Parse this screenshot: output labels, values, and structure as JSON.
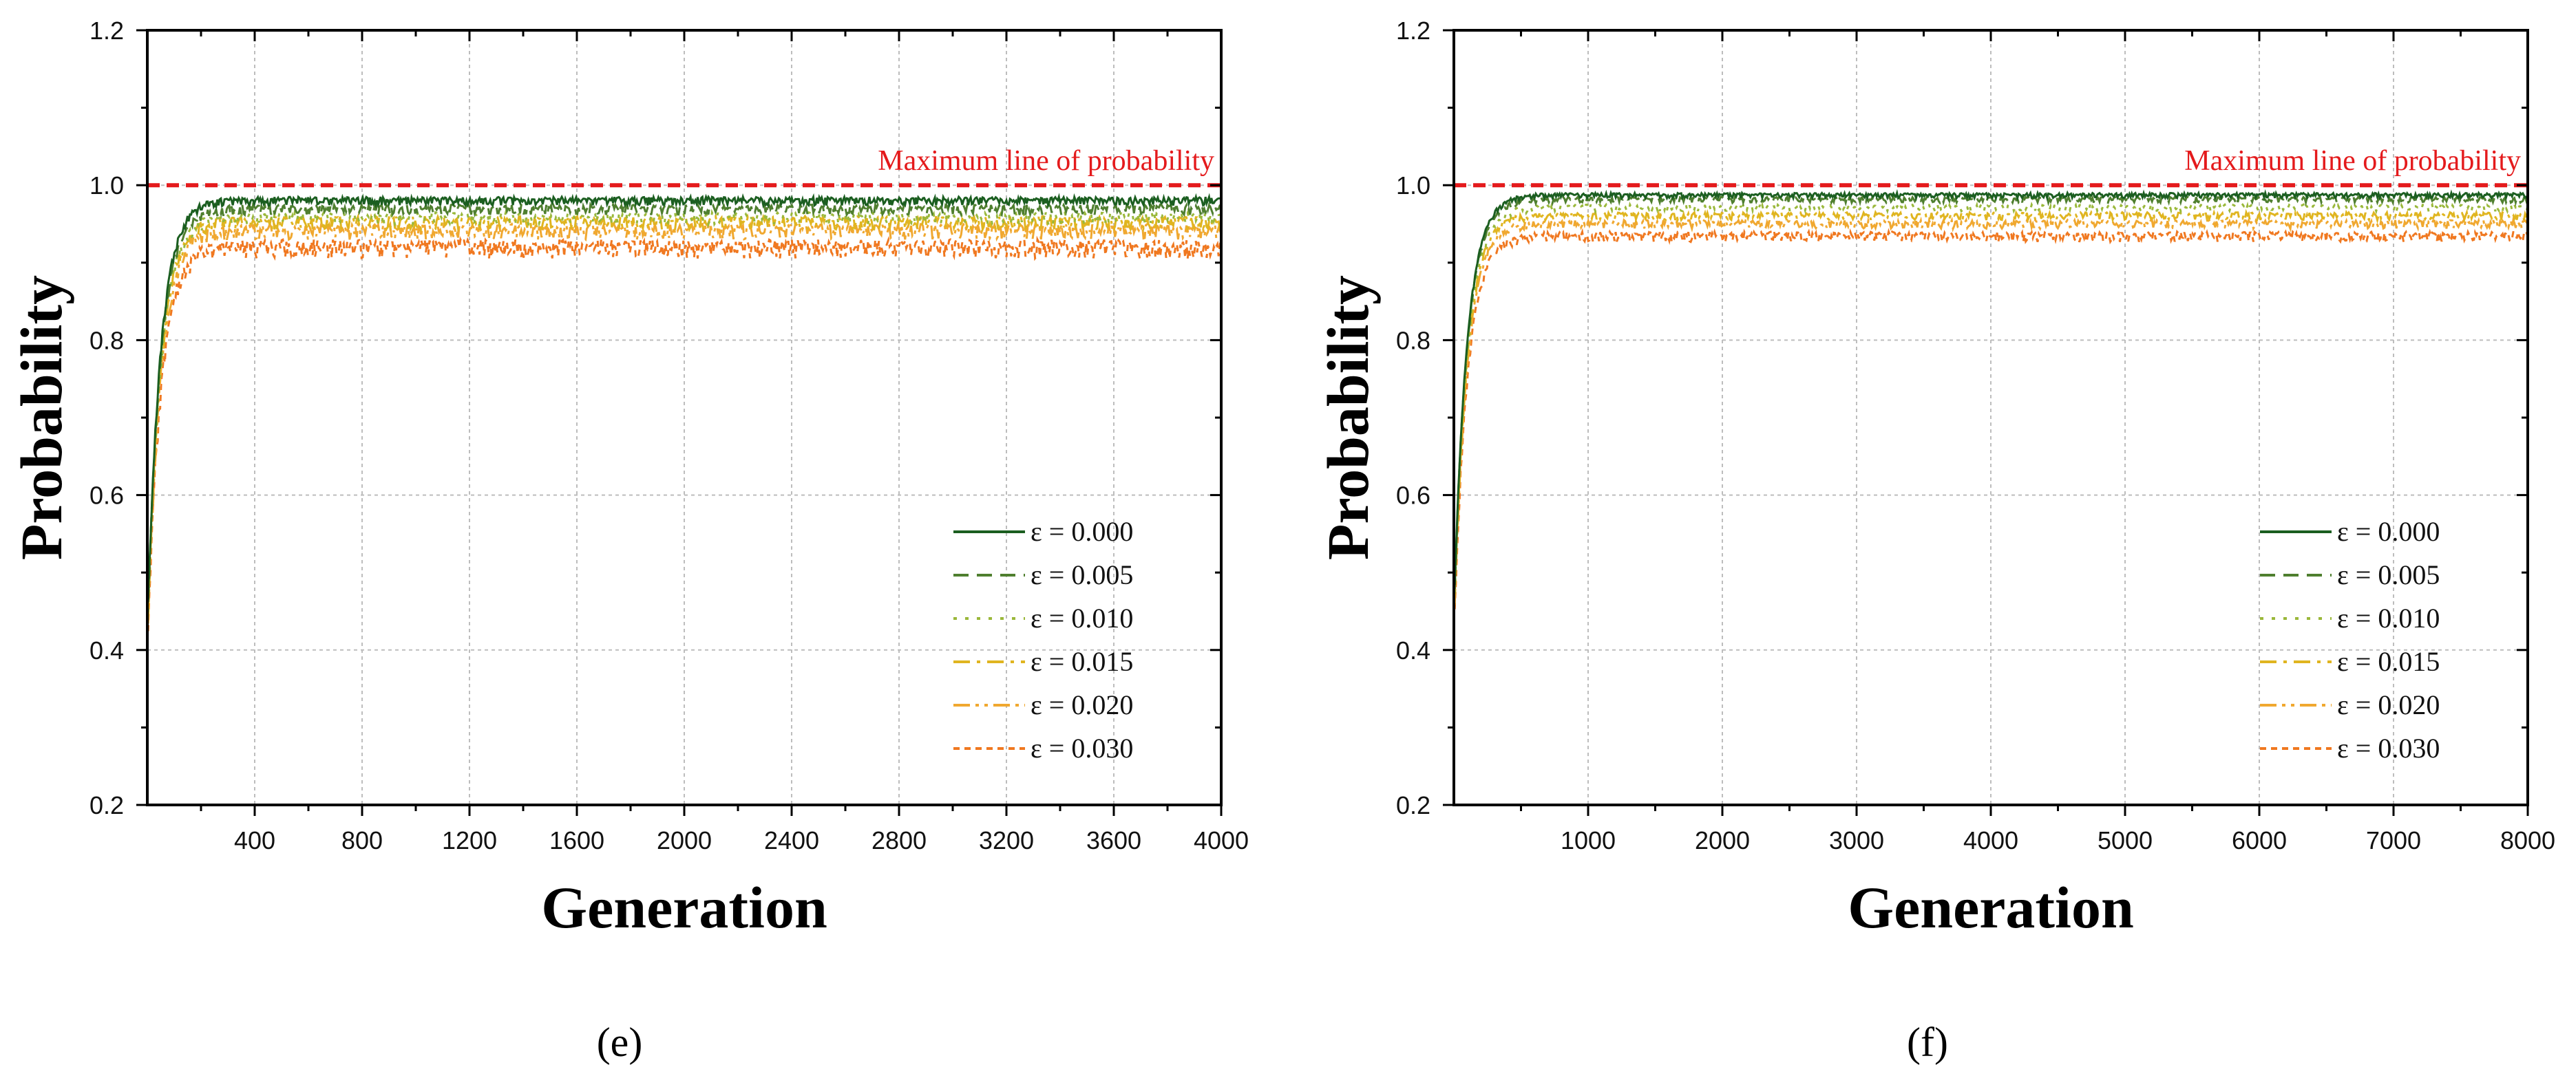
{
  "chart_data": [
    {
      "type": "line",
      "panel_label": "(e)",
      "xlabel": "Generation",
      "ylabel": "Probability",
      "xlim": [
        0,
        4000
      ],
      "ylim": [
        0.2,
        1.2
      ],
      "xticks": [
        400,
        800,
        1200,
        1600,
        2000,
        2400,
        2800,
        3200,
        3600,
        4000
      ],
      "yticks": [
        0.2,
        0.4,
        0.6,
        0.8,
        1.0,
        1.2
      ],
      "grid": true,
      "legend_position": "bottom-right",
      "reference_line": {
        "y": 1.0,
        "label": "Maximum line of probability",
        "color": "#e41a1c"
      },
      "series": [
        {
          "name": "ε = 0.000",
          "start": 0.43,
          "plateau": 0.985,
          "noise": 0.01,
          "color": "#1b5e20",
          "dash": "solid"
        },
        {
          "name": "ε = 0.005",
          "start": 0.43,
          "plateau": 0.975,
          "noise": 0.012,
          "color": "#4f7f2f",
          "dash": "dash"
        },
        {
          "name": "ε = 0.010",
          "start": 0.42,
          "plateau": 0.965,
          "noise": 0.014,
          "color": "#9ab83a",
          "dash": "dot"
        },
        {
          "name": "ε = 0.015",
          "start": 0.42,
          "plateau": 0.96,
          "noise": 0.016,
          "color": "#e0b520",
          "dash": "dashdot"
        },
        {
          "name": "ε = 0.020",
          "start": 0.41,
          "plateau": 0.95,
          "noise": 0.018,
          "color": "#f0a830",
          "dash": "dashdotdot"
        },
        {
          "name": "ε = 0.030",
          "start": 0.4,
          "plateau": 0.93,
          "noise": 0.022,
          "color": "#f07820",
          "dash": "shortdash"
        }
      ]
    },
    {
      "type": "line",
      "panel_label": "(f)",
      "xlabel": "Generation",
      "ylabel": "Probability",
      "xlim": [
        0,
        8000
      ],
      "ylim": [
        0.2,
        1.2
      ],
      "xticks": [
        1000,
        2000,
        3000,
        4000,
        5000,
        6000,
        7000,
        8000
      ],
      "yticks": [
        0.2,
        0.4,
        0.6,
        0.8,
        1.0,
        1.2
      ],
      "grid": true,
      "legend_position": "bottom-right",
      "reference_line": {
        "y": 1.0,
        "label": "Maximum line of probability",
        "color": "#e41a1c"
      },
      "series": [
        {
          "name": "ε = 0.000",
          "start": 0.45,
          "plateau": 0.99,
          "noise": 0.006,
          "color": "#1b5e20",
          "dash": "solid"
        },
        {
          "name": "ε = 0.005",
          "start": 0.45,
          "plateau": 0.985,
          "noise": 0.007,
          "color": "#4f7f2f",
          "dash": "dash"
        },
        {
          "name": "ε = 0.010",
          "start": 0.44,
          "plateau": 0.975,
          "noise": 0.008,
          "color": "#9ab83a",
          "dash": "dot"
        },
        {
          "name": "ε = 0.015",
          "start": 0.44,
          "plateau": 0.965,
          "noise": 0.009,
          "color": "#e0b520",
          "dash": "dashdot"
        },
        {
          "name": "ε = 0.020",
          "start": 0.43,
          "plateau": 0.955,
          "noise": 0.01,
          "color": "#f0a830",
          "dash": "dashdotdot"
        },
        {
          "name": "ε = 0.030",
          "start": 0.42,
          "plateau": 0.94,
          "noise": 0.012,
          "color": "#f07820",
          "dash": "shortdash"
        }
      ]
    }
  ]
}
